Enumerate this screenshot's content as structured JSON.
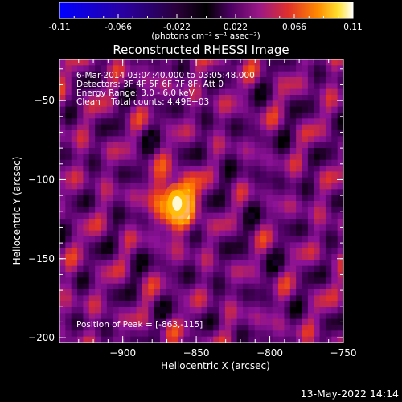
{
  "chart_data": {
    "type": "heatmap",
    "title": "Reconstructed RHESSI Image",
    "xlabel": "Heliocentric X (arcsec)",
    "ylabel": "Heliocentric Y (arcsec)",
    "x_ticks": [
      -900,
      -850,
      -800,
      -750
    ],
    "y_ticks": [
      -50,
      -100,
      -150,
      -200
    ],
    "xlim": [
      -943,
      -750
    ],
    "ylim": [
      -203,
      -24
    ],
    "colorbar": {
      "min": -0.11,
      "max": 0.11,
      "ticks": [
        "-0.11",
        "-0.066",
        "-0.022",
        "0.022",
        "0.066",
        "0.11"
      ],
      "unit_label": "(photons cm⁻² s⁻¹ asec⁻²)",
      "colormap": [
        "#0000ff",
        "#2a00a0",
        "#3a0064",
        "#000000",
        "#4a0060",
        "#8c1296",
        "#e0302a",
        "#ff7800",
        "#ffd800",
        "#ffffff"
      ]
    },
    "peak": {
      "x": -863,
      "y": -115,
      "value": 0.11
    },
    "annotations": [
      "6-Mar-2014 03:04:40.000 to 03:05:48.000",
      "Detectors: 3F 4F 5F 6F 7F 8F, Att 0",
      "Energy Range: 3.0 - 6.0 keV",
      "Clean    Total counts: 4.49E+03"
    ],
    "peak_label": "Position of Peak = [-863,-115]"
  },
  "footer": {
    "timestamp": "13-May-2022 14:14"
  }
}
